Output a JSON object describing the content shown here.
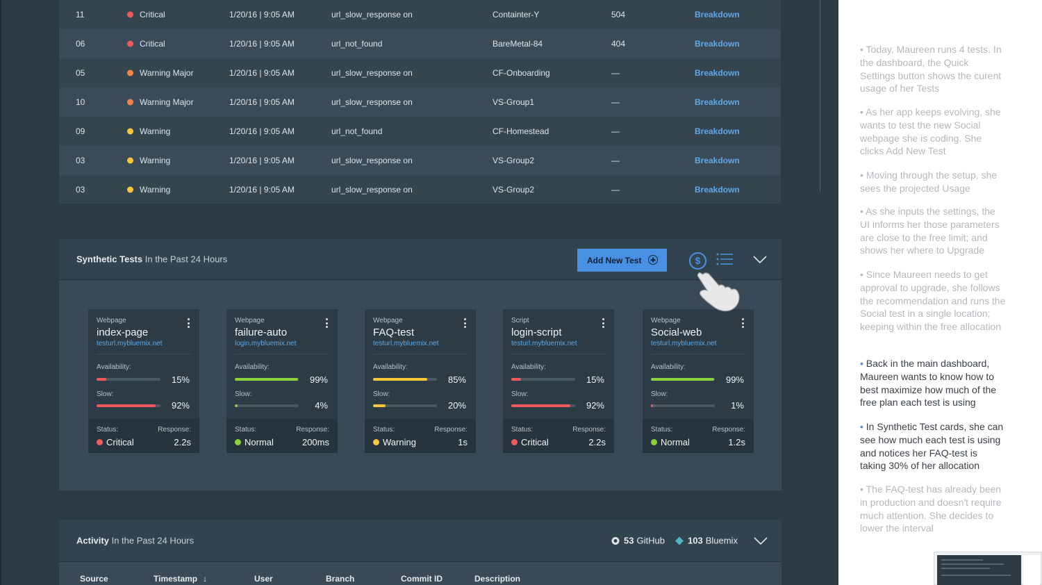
{
  "alerts": [
    {
      "id": "11",
      "severity": "Critical",
      "color": "#f05a5a",
      "time": "1/20/16 | 9:05 AM",
      "event": "url_slow_response on",
      "target": "Containter-Y",
      "code": "504",
      "action": "Breakdown"
    },
    {
      "id": "06",
      "severity": "Critical",
      "color": "#f05a5a",
      "time": "1/20/16 | 9:05 AM",
      "event": "url_not_found",
      "target": "BareMetal-84",
      "code": "404",
      "action": "Breakdown"
    },
    {
      "id": "05",
      "severity": "Warning Major",
      "color": "#f5834a",
      "time": "1/20/16 | 9:05 AM",
      "event": "url_slow_response on",
      "target": "CF-Onboarding",
      "code": "—",
      "action": "Breakdown"
    },
    {
      "id": "10",
      "severity": "Warning Major",
      "color": "#f5834a",
      "time": "1/20/16 | 9:05 AM",
      "event": "url_slow_response on",
      "target": "VS-Group1",
      "code": "—",
      "action": "Breakdown"
    },
    {
      "id": "09",
      "severity": "Warning",
      "color": "#f5c73a",
      "time": "1/20/16 | 9:05 AM",
      "event": "url_not_found",
      "target": "CF-Homestead",
      "code": "—",
      "action": "Breakdown"
    },
    {
      "id": "03",
      "severity": "Warning",
      "color": "#f5c73a",
      "time": "1/20/16 | 9:05 AM",
      "event": "url_slow_response on",
      "target": "VS-Group2",
      "code": "—",
      "action": "Breakdown"
    },
    {
      "id": "03",
      "severity": "Warning",
      "color": "#f5c73a",
      "time": "1/20/16 | 9:05 AM",
      "event": "url_slow_response on",
      "target": "VS-Group2",
      "code": "—",
      "action": "Breakdown"
    }
  ],
  "synthetic": {
    "title": "Synthetic Tests",
    "subtitle": "In the Past 24 Hours",
    "add_label": "Add New Test",
    "dollar_glyph": "$",
    "cards": [
      {
        "kind": "Webpage",
        "name": "index-page",
        "url": "testurl.mybluemix.net",
        "availability_label": "Availability:",
        "availability": 15,
        "availability_text": "15%",
        "availability_color": "#f05a5a",
        "slow_label": "Slow:",
        "slow": 92,
        "slow_text": "92%",
        "slow_color": "#f05a5a",
        "status_label": "Status:",
        "status": "Critical",
        "status_color": "#f05a5a",
        "response_label": "Response:",
        "response": "2.2s"
      },
      {
        "kind": "Webpage",
        "name": "failure-auto",
        "url": "login.mybluemix.net",
        "availability_label": "Availability:",
        "availability": 99,
        "availability_text": "99%",
        "availability_color": "#8cd23c",
        "slow_label": "Slow:",
        "slow": 4,
        "slow_text": "4%",
        "slow_color": "#8cd23c",
        "status_label": "Status:",
        "status": "Normal",
        "status_color": "#8cd23c",
        "response_label": "Response:",
        "response": "200ms"
      },
      {
        "kind": "Webpage",
        "name": "FAQ-test",
        "url": "testurl.mybluemix.net",
        "availability_label": "Availability:",
        "availability": 85,
        "availability_text": "85%",
        "availability_color": "#f5c73a",
        "slow_label": "Slow:",
        "slow": 20,
        "slow_text": "20%",
        "slow_color": "#f5c73a",
        "status_label": "Status:",
        "status": "Warning",
        "status_color": "#f5c73a",
        "response_label": "Response:",
        "response": "1s"
      },
      {
        "kind": "Script",
        "name": "login-script",
        "url": "testurl.mybluemix.net",
        "availability_label": "Availability:",
        "availability": 15,
        "availability_text": "15%",
        "availability_color": "#f05a5a",
        "slow_label": "Slow:",
        "slow": 92,
        "slow_text": "92%",
        "slow_color": "#f05a5a",
        "status_label": "Status:",
        "status": "Critical",
        "status_color": "#f05a5a",
        "response_label": "Response:",
        "response": "2.2s"
      },
      {
        "kind": "Webpage",
        "name": "Social-web",
        "url": "testurl.mybluemix.net",
        "availability_label": "Availability:",
        "availability": 99,
        "availability_text": "99%",
        "availability_color": "#8cd23c",
        "slow_label": "Slow:",
        "slow": 1,
        "slow_text": "1%",
        "slow_color": "#f05a5a",
        "status_label": "Status:",
        "status": "Normal",
        "status_color": "#8cd23c",
        "response_label": "Response:",
        "response": "1.2s"
      }
    ]
  },
  "activity": {
    "title": "Activity",
    "subtitle": "In the Past 24 Hours",
    "github_count": "53",
    "github_label": "GitHub",
    "bluemix_count": "103",
    "bluemix_label": "Bluemix",
    "columns": [
      "Source",
      "Timestamp",
      "User",
      "Branch",
      "Commit ID",
      "Description"
    ],
    "sort_glyph": "↓"
  },
  "notes": [
    {
      "text": "Today, Maureen runs 4 tests. In the dashboard, the Quick Settings button shows the curent usage of her Tests",
      "emphasis": false
    },
    {
      "text": "As her app keeps evolving, she wants to test the new Social webpage she is coding. She clicks Add New Test",
      "emphasis": false
    },
    {
      "text": "Moving through the setup, she sees the projected Usage",
      "emphasis": false
    },
    {
      "text": "As she inputs the settings, the UI informs her those parameters are close to the free limit; and shows her where to Upgrade",
      "emphasis": false
    },
    {
      "text": "Since Maureen needs to get approval to upgrade, she follows the recommendation and runs the Social test in a single location; keeping within the free allocation",
      "emphasis": false
    },
    {
      "text": "Back in the main dashboard, Maureen wants to know how to best maximize how much of the free plan each test is using",
      "emphasis": true
    },
    {
      "text": "In Synthetic Test cards, she can see how much each test is using and notices her FAQ-test is taking 30% of her allocation",
      "emphasis": true
    },
    {
      "text": "The FAQ-test has already been in production and doesn't require much attention. She decides to lower the interval",
      "emphasis": false
    }
  ],
  "colors": {
    "accent": "#4a90e2",
    "critical": "#f05a5a",
    "major": "#f5834a",
    "warning": "#f5c73a",
    "normal": "#8cd23c"
  }
}
